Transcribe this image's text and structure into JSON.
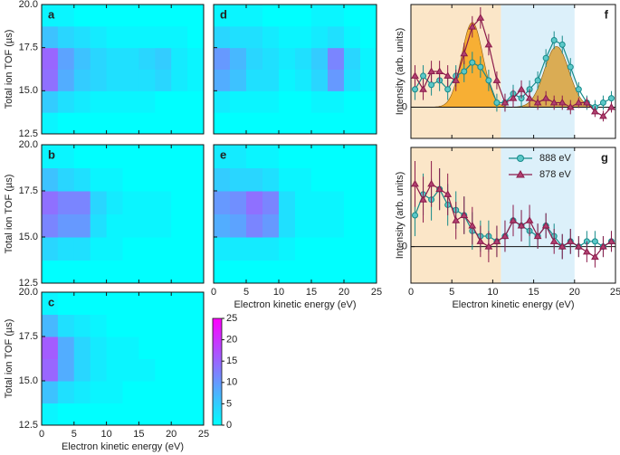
{
  "chart_data": [
    {
      "type": "heatmap",
      "panel_label": "a",
      "ylabel": "Total ion TOF (µs)",
      "x_bins": [
        0,
        2.5,
        5,
        7.5,
        10,
        12.5,
        15,
        17.5,
        20,
        22.5,
        25
      ],
      "y_bins": [
        12.5,
        13.75,
        15,
        16.25,
        17.5,
        18.75,
        20
      ],
      "z": [
        [
          1,
          0,
          0,
          0,
          0,
          0,
          0,
          0,
          0,
          0
        ],
        [
          5,
          3,
          2,
          1,
          1,
          1,
          1,
          0,
          0,
          0
        ],
        [
          14,
          8,
          5,
          4,
          3,
          3,
          3,
          4,
          2,
          1
        ],
        [
          15,
          9,
          6,
          4,
          3,
          3,
          4,
          5,
          2,
          1
        ],
        [
          6,
          4,
          3,
          2,
          1,
          1,
          1,
          1,
          1,
          0
        ],
        [
          1,
          1,
          0,
          0,
          0,
          0,
          0,
          0,
          0,
          0
        ]
      ],
      "zlim": [
        0,
        25
      ],
      "xlim": [
        0,
        25
      ],
      "ylim": [
        12.5,
        20
      ],
      "xticks": [
        0,
        5,
        10,
        15,
        20,
        25
      ],
      "yticks": [
        12.5,
        {
          "value": 15,
          "label": "15.0"
        },
        17.5,
        {
          "value": 20,
          "label": "20.0"
        }
      ],
      "xtick_labels": false,
      "ytick_labels": true
    },
    {
      "type": "heatmap",
      "panel_label": "b",
      "ylabel": "Total ion TOF (µs)",
      "x_bins": [
        0,
        2.5,
        5,
        7.5,
        10,
        12.5,
        15,
        17.5,
        20,
        22.5,
        25
      ],
      "y_bins": [
        12.5,
        13.75,
        15,
        16.25,
        17.5,
        18.75,
        20
      ],
      "z": [
        [
          0,
          0,
          0,
          0,
          0,
          0,
          0,
          0,
          0,
          0
        ],
        [
          4,
          3,
          3,
          1,
          1,
          0,
          0,
          0,
          0,
          0
        ],
        [
          12,
          10,
          10,
          3,
          1,
          1,
          1,
          1,
          0,
          0
        ],
        [
          14,
          12,
          12,
          4,
          2,
          1,
          1,
          1,
          0,
          0
        ],
        [
          6,
          4,
          3,
          1,
          1,
          0,
          0,
          0,
          0,
          0
        ],
        [
          1,
          1,
          0,
          0,
          0,
          0,
          0,
          0,
          0,
          0
        ]
      ],
      "zlim": [
        0,
        25
      ],
      "xlim": [
        0,
        25
      ],
      "ylim": [
        12.5,
        20
      ],
      "xticks": [
        0,
        5,
        10,
        15,
        20,
        25
      ],
      "yticks": [
        12.5,
        {
          "value": 15,
          "label": "15.0"
        },
        17.5,
        {
          "value": 20,
          "label": "20.0"
        }
      ],
      "xtick_labels": false,
      "ytick_labels": true
    },
    {
      "type": "heatmap",
      "panel_label": "c",
      "ylabel": "Total ion TOF (µs)",
      "xlabel": "Electron kinetic energy (eV)",
      "x_bins": [
        0,
        2.5,
        5,
        7.5,
        10,
        12.5,
        15,
        17.5,
        20,
        22.5,
        25
      ],
      "y_bins": [
        12.5,
        13.75,
        15,
        16.25,
        17.5,
        18.75,
        20
      ],
      "z": [
        [
          1,
          0,
          0,
          0,
          0,
          0,
          0,
          0,
          0,
          0
        ],
        [
          6,
          3,
          2,
          1,
          1,
          0,
          0,
          0,
          0,
          0
        ],
        [
          15,
          8,
          4,
          2,
          1,
          1,
          1,
          0,
          0,
          0
        ],
        [
          16,
          8,
          4,
          2,
          1,
          1,
          0,
          0,
          0,
          0
        ],
        [
          7,
          3,
          2,
          1,
          0,
          0,
          0,
          0,
          0,
          0
        ],
        [
          1,
          0,
          0,
          0,
          0,
          0,
          0,
          0,
          0,
          0
        ]
      ],
      "zlim": [
        0,
        25
      ],
      "xlim": [
        0,
        25
      ],
      "ylim": [
        12.5,
        20
      ],
      "xticks": [
        0,
        5,
        10,
        15,
        20,
        25
      ],
      "yticks": [
        12.5,
        {
          "value": 15,
          "label": "15.0"
        },
        17.5,
        {
          "value": 20,
          "label": "20.0"
        }
      ],
      "xtick_labels": true,
      "ytick_labels": true,
      "colorbar": {
        "lim": [
          0,
          25
        ],
        "ticks": [
          0,
          5,
          10,
          15,
          20,
          25
        ]
      }
    },
    {
      "type": "heatmap",
      "panel_label": "d",
      "x_bins": [
        0,
        2.5,
        5,
        7.5,
        10,
        12.5,
        15,
        17.5,
        20,
        22.5,
        25
      ],
      "y_bins": [
        12.5,
        13.75,
        15,
        16.25,
        17.5,
        18.75,
        20
      ],
      "z": [
        [
          0,
          0,
          0,
          0,
          0,
          0,
          0,
          0,
          0,
          0
        ],
        [
          2,
          1,
          1,
          1,
          0,
          0,
          1,
          1,
          0,
          0
        ],
        [
          8,
          6,
          3,
          3,
          1,
          2,
          4,
          10,
          3,
          1
        ],
        [
          10,
          7,
          4,
          3,
          2,
          3,
          5,
          12,
          4,
          1
        ],
        [
          4,
          3,
          3,
          2,
          1,
          1,
          2,
          3,
          1,
          0
        ],
        [
          1,
          1,
          1,
          0,
          0,
          0,
          1,
          1,
          0,
          0
        ]
      ],
      "zlim": [
        0,
        25
      ],
      "xlim": [
        0,
        25
      ],
      "ylim": [
        12.5,
        20
      ],
      "xticks": [
        0,
        5,
        10,
        15,
        20,
        25
      ],
      "yticks": [
        12.5,
        15,
        17.5,
        20
      ],
      "xtick_labels": false,
      "ytick_labels": false
    },
    {
      "type": "heatmap",
      "panel_label": "e",
      "xlabel": "Electron kinetic energy (eV)",
      "x_bins": [
        0,
        2.5,
        5,
        7.5,
        10,
        12.5,
        15,
        17.5,
        20,
        22.5,
        25
      ],
      "y_bins": [
        12.5,
        13.75,
        15,
        16.25,
        17.5,
        18.75,
        20
      ],
      "z": [
        [
          0,
          0,
          0,
          0,
          0,
          0,
          0,
          0,
          0,
          0
        ],
        [
          2,
          2,
          2,
          2,
          1,
          0,
          0,
          0,
          0,
          0
        ],
        [
          8,
          9,
          12,
          10,
          3,
          1,
          1,
          1,
          0,
          0
        ],
        [
          10,
          11,
          14,
          12,
          3,
          1,
          1,
          1,
          0,
          0
        ],
        [
          5,
          4,
          4,
          3,
          1,
          1,
          0,
          0,
          0,
          0
        ],
        [
          2,
          2,
          1,
          1,
          0,
          0,
          0,
          0,
          0,
          0
        ]
      ],
      "zlim": [
        0,
        25
      ],
      "xlim": [
        0,
        25
      ],
      "ylim": [
        12.5,
        20
      ],
      "xticks": [
        0,
        5,
        10,
        15,
        20,
        25
      ],
      "yticks": [
        12.5,
        15,
        17.5,
        20
      ],
      "xtick_labels": true,
      "ytick_labels": false
    },
    {
      "type": "line",
      "panel_label": "f",
      "ylabel": "Intensity (arb. units)",
      "xlim": [
        0,
        25
      ],
      "ylim": [
        -0.35,
        1.15
      ],
      "xticks": [
        0,
        5,
        10,
        15,
        20,
        25
      ],
      "yticks": [
        0
      ],
      "grid": true,
      "xtick_labels": false,
      "ytick_labels": true,
      "spans": [
        {
          "start": 0,
          "end": 11,
          "color": "#fbe6c8"
        },
        {
          "start": 11,
          "end": 20,
          "color": "#dcf0fa"
        }
      ],
      "fits": [
        {
          "center": 7.5,
          "amplitude": 0.95,
          "sigma": 1.3,
          "color": "#f6a823"
        },
        {
          "center": 17.8,
          "amplitude": 0.68,
          "sigma": 1.5,
          "color": "#d9a441"
        }
      ],
      "x": [
        0.5,
        1.5,
        2.5,
        3.5,
        4.5,
        5.5,
        6.5,
        7.5,
        8.5,
        9.5,
        10.5,
        11.5,
        12.5,
        13.5,
        14.5,
        15.5,
        16.5,
        17.5,
        18.5,
        19.5,
        20.5,
        21.5,
        22.5,
        23.5,
        24.5
      ],
      "series": [
        {
          "color": "#168a8a",
          "marker": "circle",
          "fill": "#5cc8c8",
          "values": [
            0.2,
            0.35,
            0.25,
            0.3,
            0.2,
            0.35,
            0.4,
            0.5,
            0.45,
            0.3,
            0.05,
            0.05,
            0.15,
            0.1,
            0.2,
            0.3,
            0.55,
            0.75,
            0.7,
            0.45,
            0.2,
            0.05,
            0,
            0.05,
            0.1
          ],
          "errors": [
            0.12,
            0.12,
            0.12,
            0.12,
            0.12,
            0.12,
            0.12,
            0.12,
            0.12,
            0.12,
            0.1,
            0.1,
            0.1,
            0.1,
            0.1,
            0.1,
            0.1,
            0.1,
            0.1,
            0.1,
            0.08,
            0.08,
            0.08,
            0.08,
            0.08
          ]
        },
        {
          "color": "#8b1a4a",
          "marker": "triangle",
          "fill": "#b04070",
          "values": [
            0.35,
            0.2,
            0.4,
            0.4,
            0.35,
            0.3,
            0.6,
            0.9,
            1.0,
            0.7,
            0.3,
            0.05,
            0.1,
            0.2,
            0.1,
            0.05,
            0.1,
            0.05,
            0.05,
            0,
            0.05,
            0.05,
            -0.05,
            -0.1,
            0
          ],
          "errors": [
            0.12,
            0.12,
            0.12,
            0.12,
            0.12,
            0.12,
            0.12,
            0.12,
            0.12,
            0.12,
            0.1,
            0.1,
            0.1,
            0.1,
            0.1,
            0.08,
            0.08,
            0.08,
            0.08,
            0.08,
            0.06,
            0.06,
            0.06,
            0.06,
            0.06
          ]
        }
      ]
    },
    {
      "type": "line",
      "panel_label": "g",
      "ylabel": "Intensity (arb. units)",
      "xlabel": "Electron kinetic energy (eV)",
      "xlim": [
        0,
        25
      ],
      "ylim": [
        -0.35,
        0.95
      ],
      "xticks": [
        0,
        5,
        10,
        15,
        20,
        25
      ],
      "yticks": [
        0
      ],
      "grid": true,
      "xtick_labels": true,
      "ytick_labels": true,
      "legend": "upper right",
      "spans": [
        {
          "start": 0,
          "end": 11,
          "color": "#fbe6c8"
        },
        {
          "start": 11,
          "end": 20,
          "color": "#dcf0fa"
        }
      ],
      "x": [
        0.5,
        1.5,
        2.5,
        3.5,
        4.5,
        5.5,
        6.5,
        7.5,
        8.5,
        9.5,
        10.5,
        11.5,
        12.5,
        13.5,
        14.5,
        15.5,
        16.5,
        17.5,
        18.5,
        19.5,
        20.5,
        21.5,
        22.5,
        23.5,
        24.5
      ],
      "series": [
        {
          "name": "888 eV",
          "color": "#168a8a",
          "marker": "circle",
          "fill": "#5cc8c8",
          "values": [
            0.3,
            0.5,
            0.45,
            0.55,
            0.4,
            0.35,
            0.3,
            0.15,
            0.1,
            0.1,
            0.05,
            0.1,
            0.25,
            0.2,
            0.15,
            0.1,
            0.2,
            0.1,
            0,
            0.05,
            0,
            0.05,
            0.05,
            0,
            0.05
          ],
          "errors": [
            0.2,
            0.2,
            0.2,
            0.2,
            0.2,
            0.18,
            0.18,
            0.18,
            0.15,
            0.15,
            0.15,
            0.15,
            0.15,
            0.15,
            0.15,
            0.12,
            0.12,
            0.12,
            0.12,
            0.12,
            0.1,
            0.1,
            0.1,
            0.1,
            0.1
          ]
        },
        {
          "name": "878 eV",
          "color": "#8b1a4a",
          "marker": "triangle",
          "fill": "#b04070",
          "values": [
            0.6,
            0.45,
            0.6,
            0.55,
            0.5,
            0.25,
            0.3,
            0.2,
            0.05,
            0,
            0.05,
            0.1,
            0.25,
            0.2,
            0.25,
            0.1,
            0.2,
            0.05,
            0,
            0.05,
            0,
            -0.05,
            -0.1,
            0,
            0.05
          ],
          "errors": [
            0.22,
            0.22,
            0.22,
            0.2,
            0.2,
            0.18,
            0.18,
            0.18,
            0.15,
            0.15,
            0.15,
            0.15,
            0.15,
            0.15,
            0.15,
            0.12,
            0.12,
            0.12,
            0.12,
            0.12,
            0.1,
            0.1,
            0.1,
            0.1,
            0.1
          ]
        }
      ]
    }
  ]
}
